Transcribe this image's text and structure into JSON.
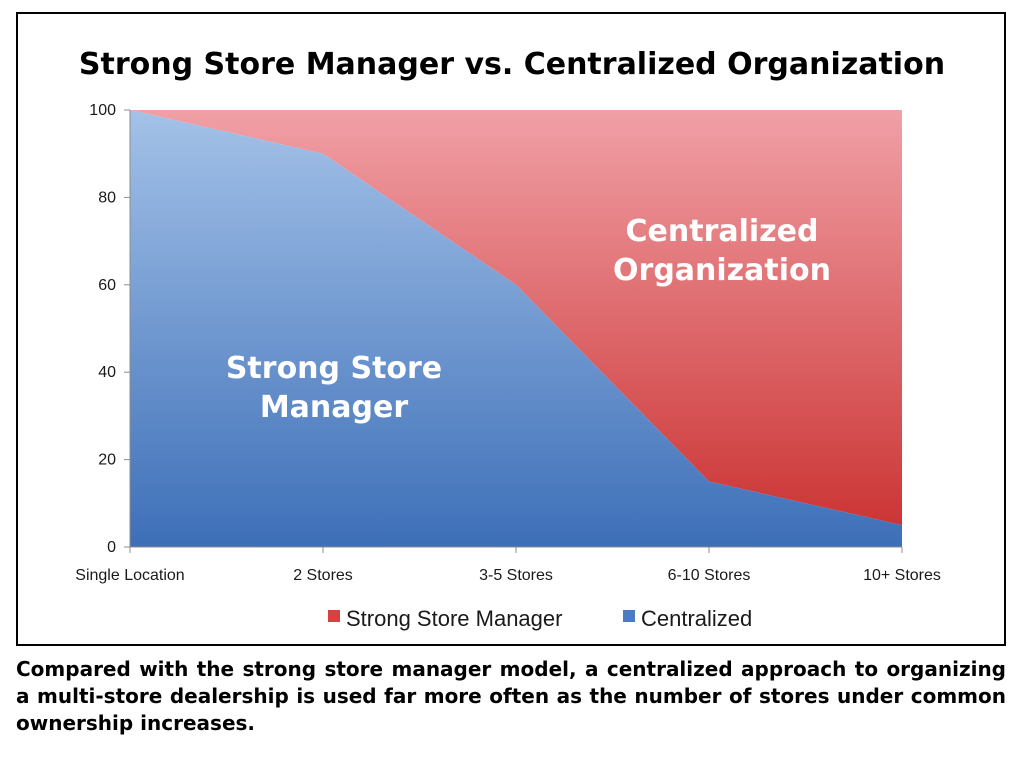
{
  "chart_data": {
    "type": "area",
    "title": "Strong Store Manager vs. Centralized Organization",
    "xlabel": "",
    "ylabel": "",
    "categories": [
      "Single Location",
      "2 Stores",
      "3-5 Stores",
      "6-10 Stores",
      "10+ Stores"
    ],
    "stacked": true,
    "ylim": [
      0,
      100
    ],
    "y_ticks": [
      "0",
      "20",
      "40",
      "60",
      "80",
      "100"
    ],
    "series": [
      {
        "name": "Strong Store Manager",
        "values": [
          100,
          90,
          60,
          15,
          5
        ],
        "color": "#3d6fb8",
        "color_light": "#a4c2e8"
      },
      {
        "name": "Centralized",
        "values": [
          0,
          10,
          40,
          85,
          95
        ],
        "color": "#cc3535",
        "color_light": "#f0a0a6"
      }
    ],
    "legend": {
      "position": "bottom",
      "items": [
        {
          "label": "Strong Store Manager",
          "color": "#d94040"
        },
        {
          "label": "Centralized",
          "color": "#4a7cc4"
        }
      ]
    },
    "annotations": {
      "strong_line1": "Strong Store",
      "strong_line2": "Manager",
      "central_line1": "Centralized",
      "central_line2": "Organization"
    },
    "grid": false
  },
  "caption": "Compared with the strong store manager model, a centralized approach to orga­nizing a multi-store dealership is used far more often as the number of stores under common ownership increases."
}
